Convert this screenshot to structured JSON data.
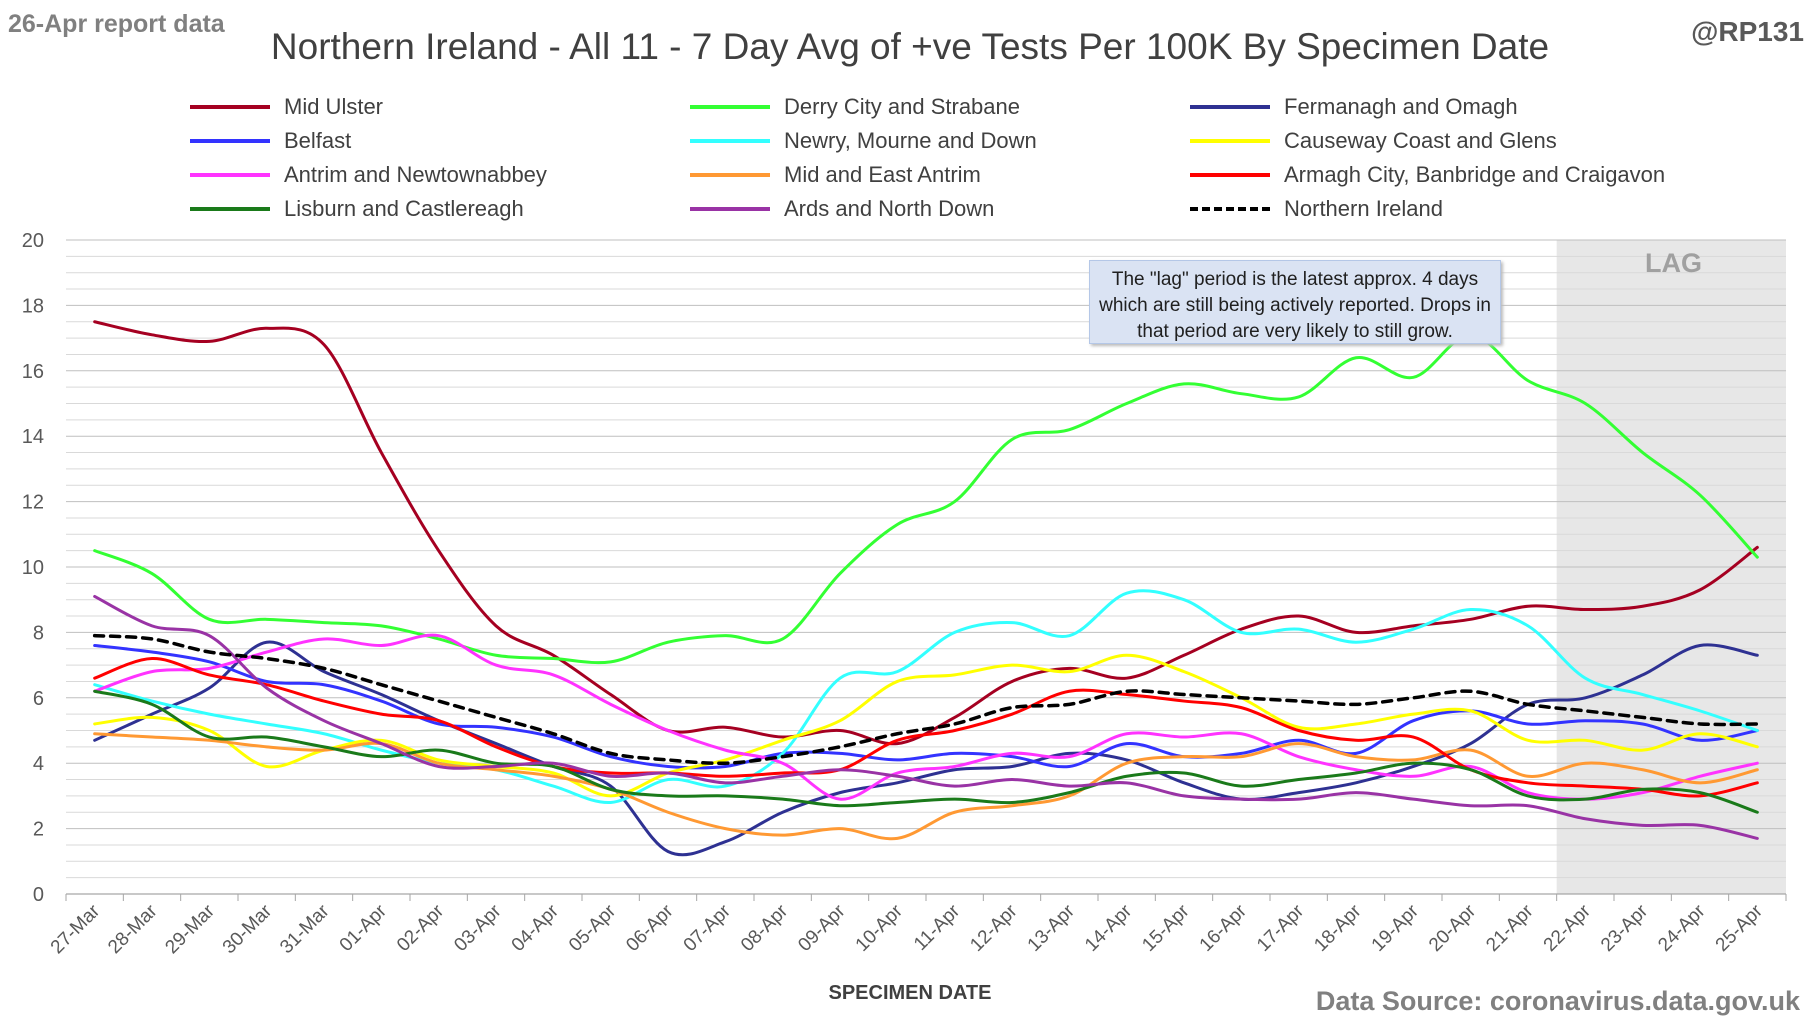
{
  "header": {
    "corner_left": "26-Apr report data",
    "corner_right": "@RP131",
    "source": "Data Source: coronavirus.data.gov.uk"
  },
  "annotation": "The \"lag\" period is the latest approx. 4 days which are still being actively reported. Drops in that period are very likely to still grow.",
  "lag_label": "LAG",
  "colors": {
    "grid": "#d9d9d9",
    "lag_shade": "#e7e7e7",
    "annotation_bg": "#dae3f3"
  },
  "chart_data": {
    "type": "line",
    "title": "Northern Ireland - All 11 - 7 Day Avg of +ve Tests Per 100K By Specimen Date",
    "xlabel": "SPECIMEN DATE",
    "ylabel": "",
    "ylim": [
      0,
      20
    ],
    "yticks": [
      0,
      2,
      4,
      6,
      8,
      10,
      12,
      14,
      16,
      18,
      20
    ],
    "grid": true,
    "legend_position": "top",
    "lag_start": "21-Apr",
    "categories": [
      "27-Mar",
      "28-Mar",
      "29-Mar",
      "30-Mar",
      "31-Mar",
      "01-Apr",
      "02-Apr",
      "03-Apr",
      "04-Apr",
      "05-Apr",
      "06-Apr",
      "07-Apr",
      "08-Apr",
      "09-Apr",
      "10-Apr",
      "11-Apr",
      "12-Apr",
      "13-Apr",
      "14-Apr",
      "15-Apr",
      "16-Apr",
      "17-Apr",
      "18-Apr",
      "19-Apr",
      "20-Apr",
      "21-Apr",
      "22-Apr",
      "23-Apr",
      "24-Apr",
      "25-Apr"
    ],
    "series": [
      {
        "name": "Mid Ulster",
        "color": "#a50021",
        "width": 3,
        "dash": false,
        "values": [
          17.5,
          17.1,
          16.9,
          17.3,
          16.8,
          13.5,
          10.5,
          8.2,
          7.3,
          6.1,
          5.0,
          5.1,
          4.8,
          5.0,
          4.6,
          5.4,
          6.5,
          6.9,
          6.6,
          7.3,
          8.1,
          8.5,
          8.0,
          8.2,
          8.4,
          8.8,
          8.7,
          8.8,
          9.3,
          10.6
        ]
      },
      {
        "name": "Derry City and Strabane",
        "color": "#33ff33",
        "width": 3,
        "dash": false,
        "values": [
          10.5,
          9.8,
          8.4,
          8.4,
          8.3,
          8.2,
          7.8,
          7.3,
          7.2,
          7.1,
          7.7,
          7.9,
          7.8,
          9.8,
          11.3,
          12.0,
          13.9,
          14.2,
          15.0,
          15.6,
          15.3,
          15.2,
          16.4,
          15.8,
          17.1,
          15.7,
          15.0,
          13.5,
          12.2,
          10.3
        ]
      },
      {
        "name": "Fermanagh and Omagh",
        "color": "#2e3192",
        "width": 3,
        "dash": false,
        "values": [
          4.7,
          5.5,
          6.3,
          7.7,
          6.8,
          6.1,
          5.3,
          4.6,
          3.9,
          3.3,
          1.3,
          1.6,
          2.5,
          3.1,
          3.4,
          3.8,
          3.9,
          4.3,
          4.1,
          3.4,
          2.9,
          3.1,
          3.4,
          3.9,
          4.6,
          5.8,
          6.0,
          6.7,
          7.6,
          7.3
        ]
      },
      {
        "name": "Belfast",
        "color": "#3333ff",
        "width": 3,
        "dash": false,
        "values": [
          7.6,
          7.4,
          7.1,
          6.5,
          6.4,
          5.9,
          5.2,
          5.1,
          4.8,
          4.2,
          3.9,
          3.9,
          4.3,
          4.3,
          4.1,
          4.3,
          4.2,
          3.9,
          4.6,
          4.2,
          4.3,
          4.7,
          4.3,
          5.3,
          5.6,
          5.2,
          5.3,
          5.2,
          4.7,
          5.0
        ]
      },
      {
        "name": "Newry, Mourne and Down",
        "color": "#33ffff",
        "width": 3,
        "dash": false,
        "values": [
          6.4,
          5.9,
          5.5,
          5.2,
          4.9,
          4.4,
          4.0,
          3.8,
          3.3,
          2.8,
          3.5,
          3.3,
          4.3,
          6.6,
          6.8,
          8.0,
          8.3,
          7.9,
          9.2,
          9.0,
          8.0,
          8.1,
          7.7,
          8.1,
          8.7,
          8.2,
          6.6,
          6.1,
          5.6,
          5.0
        ]
      },
      {
        "name": "Causeway Coast and Glens",
        "color": "#ffff00",
        "width": 3,
        "dash": false,
        "values": [
          5.2,
          5.4,
          5.0,
          3.9,
          4.4,
          4.7,
          4.1,
          3.9,
          3.7,
          3.0,
          3.7,
          4.1,
          4.7,
          5.3,
          6.5,
          6.7,
          7.0,
          6.8,
          7.3,
          6.8,
          6.0,
          5.1,
          5.2,
          5.5,
          5.6,
          4.7,
          4.7,
          4.4,
          4.9,
          4.5
        ]
      },
      {
        "name": "Antrim and Newtownabbey",
        "color": "#ff33ff",
        "width": 3,
        "dash": false,
        "values": [
          6.2,
          6.8,
          6.9,
          7.4,
          7.8,
          7.6,
          7.9,
          7.0,
          6.7,
          5.8,
          5.0,
          4.4,
          4.0,
          2.9,
          3.7,
          3.9,
          4.3,
          4.2,
          4.9,
          4.8,
          4.9,
          4.2,
          3.8,
          3.6,
          3.9,
          3.1,
          2.9,
          3.1,
          3.6,
          4.0
        ]
      },
      {
        "name": "Mid and East Antrim",
        "color": "#ff9933",
        "width": 3,
        "dash": false,
        "values": [
          4.9,
          4.8,
          4.7,
          4.5,
          4.4,
          4.6,
          4.0,
          3.8,
          3.6,
          3.2,
          2.5,
          2.0,
          1.8,
          2.0,
          1.7,
          2.5,
          2.7,
          3.0,
          4.0,
          4.2,
          4.2,
          4.6,
          4.2,
          4.1,
          4.4,
          3.6,
          4.0,
          3.8,
          3.4,
          3.8
        ]
      },
      {
        "name": "Armagh City, Banbridge and Craigavon",
        "color": "#ff0000",
        "width": 3,
        "dash": false,
        "values": [
          6.6,
          7.2,
          6.7,
          6.4,
          5.9,
          5.5,
          5.3,
          4.5,
          3.9,
          3.7,
          3.7,
          3.6,
          3.7,
          3.8,
          4.7,
          5.0,
          5.5,
          6.2,
          6.1,
          5.9,
          5.7,
          5.0,
          4.7,
          4.8,
          3.8,
          3.4,
          3.3,
          3.2,
          3.0,
          3.4
        ]
      },
      {
        "name": "Lisburn and Castlereagh",
        "color": "#1a7a1a",
        "width": 3,
        "dash": false,
        "values": [
          6.2,
          5.8,
          4.8,
          4.8,
          4.5,
          4.2,
          4.4,
          4.0,
          3.9,
          3.2,
          3.0,
          3.0,
          2.9,
          2.7,
          2.8,
          2.9,
          2.8,
          3.1,
          3.6,
          3.7,
          3.3,
          3.5,
          3.7,
          4.0,
          3.8,
          3.0,
          2.9,
          3.2,
          3.1,
          2.5
        ]
      },
      {
        "name": "Ards and North Down",
        "color": "#9933a5",
        "width": 3,
        "dash": false,
        "values": [
          9.1,
          8.2,
          7.9,
          6.3,
          5.3,
          4.6,
          3.9,
          3.9,
          4.0,
          3.6,
          3.7,
          3.4,
          3.6,
          3.8,
          3.6,
          3.3,
          3.5,
          3.3,
          3.4,
          3.0,
          2.9,
          2.9,
          3.1,
          2.9,
          2.7,
          2.7,
          2.3,
          2.1,
          2.1,
          1.7
        ]
      },
      {
        "name": "Northern Ireland",
        "color": "#000000",
        "width": 3.5,
        "dash": true,
        "values": [
          7.9,
          7.8,
          7.4,
          7.2,
          6.9,
          6.4,
          5.9,
          5.4,
          4.9,
          4.3,
          4.1,
          4.0,
          4.2,
          4.5,
          4.9,
          5.2,
          5.7,
          5.8,
          6.2,
          6.1,
          6.0,
          5.9,
          5.8,
          6.0,
          6.2,
          5.8,
          5.6,
          5.4,
          5.2,
          5.2
        ]
      }
    ]
  }
}
